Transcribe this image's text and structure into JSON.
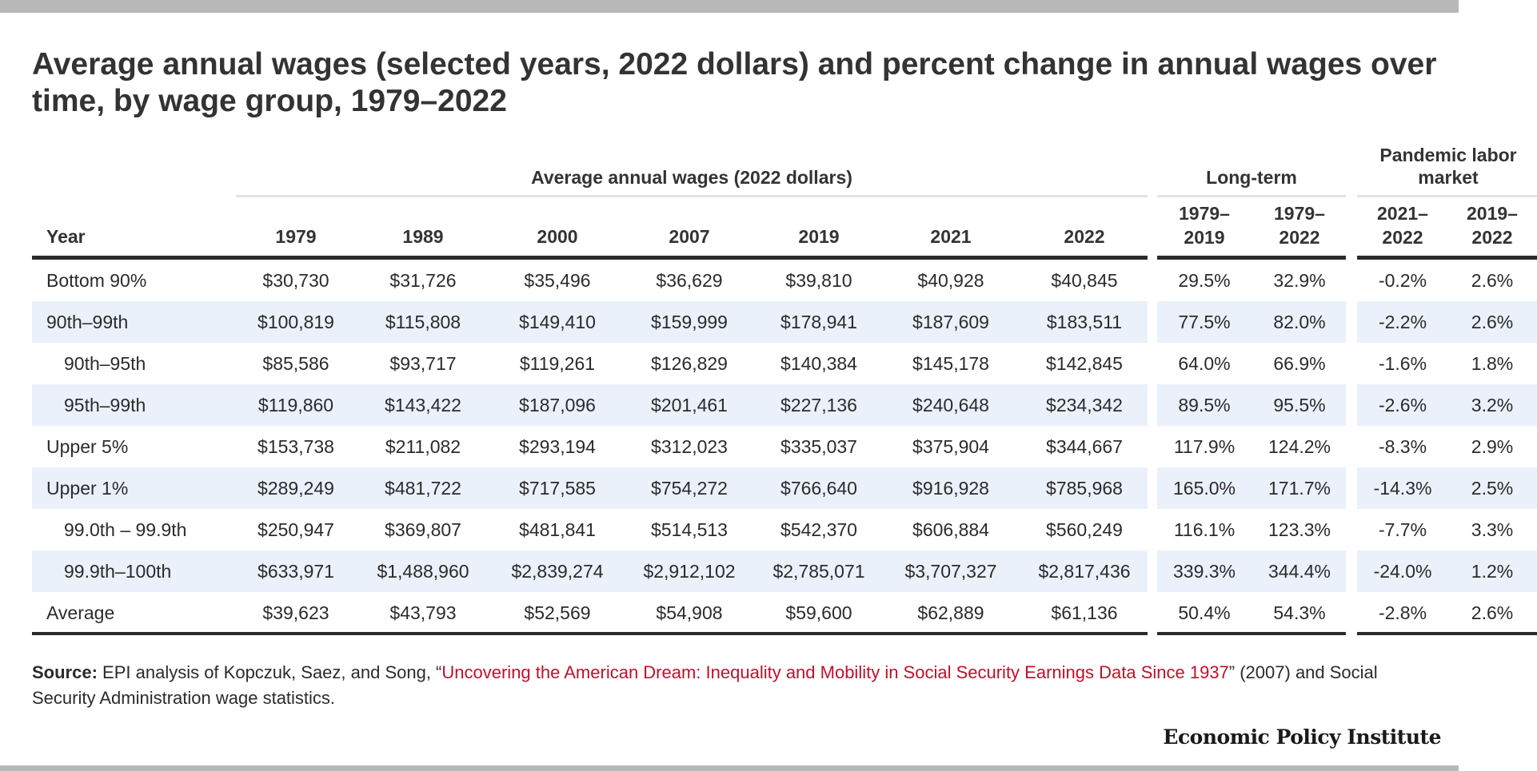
{
  "title": "Average annual wages (selected years, 2022 dollars) and percent change in annual wages over time, by wage group, 1979–2022",
  "groups": {
    "wages": "Average annual wages (2022 dollars)",
    "longterm": "Long-term",
    "pandemic": "Pandemic labor market"
  },
  "columns": {
    "year": "Year",
    "wage_years": [
      "1979",
      "1989",
      "2000",
      "2007",
      "2019",
      "2021",
      "2022"
    ],
    "longterm": [
      {
        "top": "1979–",
        "bottom": "2019"
      },
      {
        "top": "1979–",
        "bottom": "2022"
      }
    ],
    "pandemic": [
      {
        "top": "2021–",
        "bottom": "2022"
      },
      {
        "top": "2019–",
        "bottom": "2022"
      }
    ]
  },
  "chart_data": {
    "type": "table",
    "title": "Average annual wages (selected years, 2022 dollars) and percent change in annual wages over time, by wage group, 1979–2022",
    "rows": [
      {
        "label": "Bottom 90%",
        "indent": false,
        "wages": [
          "$30,730",
          "$31,726",
          "$35,496",
          "$36,629",
          "$39,810",
          "$40,928",
          "$40,845"
        ],
        "longterm": [
          "29.5%",
          "32.9%"
        ],
        "pandemic": [
          "-0.2%",
          "2.6%"
        ]
      },
      {
        "label": "90th–99th",
        "indent": false,
        "wages": [
          "$100,819",
          "$115,808",
          "$149,410",
          "$159,999",
          "$178,941",
          "$187,609",
          "$183,511"
        ],
        "longterm": [
          "77.5%",
          "82.0%"
        ],
        "pandemic": [
          "-2.2%",
          "2.6%"
        ]
      },
      {
        "label": "90th–95th",
        "indent": true,
        "wages": [
          "$85,586",
          "$93,717",
          "$119,261",
          "$126,829",
          "$140,384",
          "$145,178",
          "$142,845"
        ],
        "longterm": [
          "64.0%",
          "66.9%"
        ],
        "pandemic": [
          "-1.6%",
          "1.8%"
        ]
      },
      {
        "label": "95th–99th",
        "indent": true,
        "wages": [
          "$119,860",
          "$143,422",
          "$187,096",
          "$201,461",
          "$227,136",
          "$240,648",
          "$234,342"
        ],
        "longterm": [
          "89.5%",
          "95.5%"
        ],
        "pandemic": [
          "-2.6%",
          "3.2%"
        ]
      },
      {
        "label": "Upper 5%",
        "indent": false,
        "wages": [
          "$153,738",
          "$211,082",
          "$293,194",
          "$312,023",
          "$335,037",
          "$375,904",
          "$344,667"
        ],
        "longterm": [
          "117.9%",
          "124.2%"
        ],
        "pandemic": [
          "-8.3%",
          "2.9%"
        ]
      },
      {
        "label": "Upper 1%",
        "indent": false,
        "wages": [
          "$289,249",
          "$481,722",
          "$717,585",
          "$754,272",
          "$766,640",
          "$916,928",
          "$785,968"
        ],
        "longterm": [
          "165.0%",
          "171.7%"
        ],
        "pandemic": [
          "-14.3%",
          "2.5%"
        ]
      },
      {
        "label": "99.0th  –  99.9th",
        "indent": true,
        "wages": [
          "$250,947",
          "$369,807",
          "$481,841",
          "$514,513",
          "$542,370",
          "$606,884",
          "$560,249"
        ],
        "longterm": [
          "116.1%",
          "123.3%"
        ],
        "pandemic": [
          "-7.7%",
          "3.3%"
        ]
      },
      {
        "label": "99.9th–100th",
        "indent": true,
        "wages": [
          "$633,971",
          "$1,488,960",
          "$2,839,274",
          "$2,912,102",
          "$2,785,071",
          "$3,707,327",
          "$2,817,436"
        ],
        "longterm": [
          "339.3%",
          "344.4%"
        ],
        "pandemic": [
          "-24.0%",
          "1.2%"
        ]
      },
      {
        "label": "Average",
        "indent": false,
        "wages": [
          "$39,623",
          "$43,793",
          "$52,569",
          "$54,908",
          "$59,600",
          "$62,889",
          "$61,136"
        ],
        "longterm": [
          "50.4%",
          "54.3%"
        ],
        "pandemic": [
          "-2.8%",
          "2.6%"
        ]
      }
    ]
  },
  "source": {
    "label": "Source:",
    "pre": " EPI analysis of Kopczuk, Saez, and Song, “",
    "link": "Uncovering the American Dream: Inequality and Mobility in Social Security Earnings Data Since 1937",
    "post": "” (2007) and Social Security Administration wage statistics."
  },
  "brand": "Economic Policy Institute",
  "colors": {
    "band": "#eaf1fa",
    "link": "#c0102c",
    "rule": "#2b2b2b",
    "bar": "#b8b8b8"
  }
}
